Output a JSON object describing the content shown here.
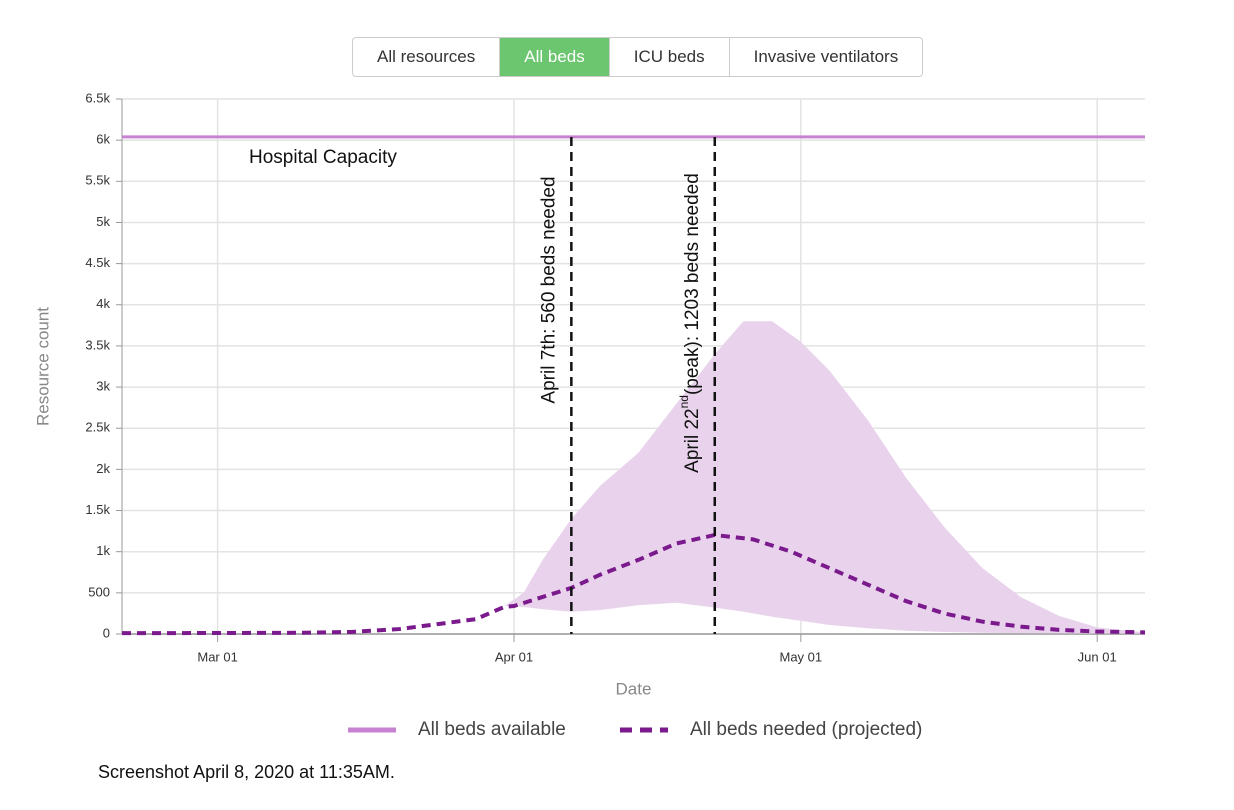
{
  "buttons": [
    {
      "label": "All resources",
      "active": false
    },
    {
      "label": "All beds",
      "active": true
    },
    {
      "label": "ICU beds",
      "active": false
    },
    {
      "label": "Invasive ventilators",
      "active": false
    }
  ],
  "caption": "Screenshot April 8, 2020 at 11:35AM.",
  "chart_data": {
    "type": "line",
    "xlabel": "Date",
    "ylabel": "Resource count",
    "xlim": [
      "Feb 19",
      "Jun 06"
    ],
    "xticks": [
      "Mar 01",
      "Apr 01",
      "May 01",
      "Jun 01"
    ],
    "ylim": [
      0,
      6500
    ],
    "yticks": [
      0,
      500,
      {
        "value": 1000,
        "label": "1k"
      },
      {
        "value": 1500,
        "label": "1.5k"
      },
      {
        "value": 2000,
        "label": "2k"
      },
      {
        "value": 2500,
        "label": "2.5k"
      },
      {
        "value": 3000,
        "label": "3k"
      },
      {
        "value": 3500,
        "label": "3.5k"
      },
      {
        "value": 4000,
        "label": "4k"
      },
      {
        "value": 4500,
        "label": "4.5k"
      },
      {
        "value": 5000,
        "label": "5k"
      },
      {
        "value": 5500,
        "label": "5.5k"
      },
      {
        "value": 6000,
        "label": "6k"
      },
      {
        "value": 6500,
        "label": "6.5k"
      }
    ],
    "grid": true,
    "series": [
      {
        "name": "All beds available",
        "color": "#c882d2",
        "dashed": false,
        "x": [
          "Feb 19",
          "Jun 06"
        ],
        "values": [
          6040,
          6040
        ]
      },
      {
        "name": "All beds needed (projected)",
        "color": "#7a1a8c",
        "dashed": true,
        "x": [
          "Feb 19",
          "Mar 01",
          "Mar 10",
          "Mar 15",
          "Mar 20",
          "Mar 24",
          "Mar 28",
          "Mar 31",
          "Apr 01",
          "Apr 04",
          "Apr 07",
          "Apr 10",
          "Apr 14",
          "Apr 18",
          "Apr 22",
          "Apr 26",
          "Apr 30",
          "May 04",
          "May 08",
          "May 12",
          "May 16",
          "May 20",
          "May 24",
          "May 28",
          "Jun 01",
          "Jun 06"
        ],
        "values": [
          10,
          12,
          15,
          25,
          60,
          120,
          180,
          330,
          340,
          450,
          560,
          720,
          900,
          1100,
          1203,
          1150,
          1000,
          800,
          600,
          400,
          250,
          150,
          90,
          50,
          30,
          20
        ],
        "band": {
          "color": "#e9d3ec",
          "x": [
            "Mar 31",
            "Apr 02",
            "Apr 04",
            "Apr 07",
            "Apr 10",
            "Apr 14",
            "Apr 18",
            "Apr 22",
            "Apr 25",
            "Apr 28",
            "May 01",
            "May 04",
            "May 08",
            "May 12",
            "May 16",
            "May 20",
            "May 24",
            "May 28",
            "Jun 01",
            "Jun 06"
          ],
          "upper": [
            340,
            500,
            900,
            1400,
            1800,
            2200,
            2800,
            3400,
            3800,
            3800,
            3550,
            3200,
            2600,
            1900,
            1300,
            800,
            450,
            220,
            80,
            20
          ],
          "lower": [
            340,
            330,
            300,
            270,
            290,
            350,
            380,
            320,
            270,
            210,
            160,
            110,
            70,
            40,
            25,
            15,
            10,
            8,
            5,
            3
          ]
        }
      }
    ],
    "annotations": [
      {
        "text": "Hospital Capacity"
      },
      {
        "x": "Apr 07",
        "text": "April 7th: 560 beds needed"
      },
      {
        "x": "Apr 22",
        "text": "April 22",
        "sup": "nd",
        "text_after": "(peak): 1203 beds needed"
      }
    ]
  }
}
